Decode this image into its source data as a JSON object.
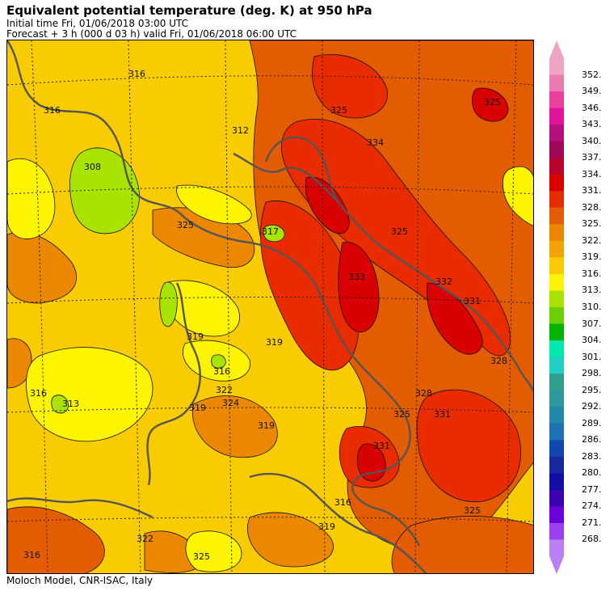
{
  "header": {
    "title": "Equivalent potential temperature (deg. K) at 950 hPa",
    "initial_time": "Initial time  Fri, 01/06/2018  03:00 UTC",
    "forecast": "Forecast  +   3 h  (000 d 03 h)  valid Fri, 01/06/2018 06:00 UTC"
  },
  "footer": {
    "credit": "Moloch Model, CNR-ISAC, Italy"
  },
  "map": {
    "contour_labels": [
      "316",
      "316",
      "308",
      "312",
      "325",
      "325",
      "334",
      "325",
      "325",
      "317",
      "333",
      "332",
      "331",
      "328",
      "319",
      "313",
      "319",
      "316",
      "322",
      "324",
      "319",
      "328",
      "331",
      "325",
      "331",
      "316",
      "325",
      "319",
      "322",
      "325",
      "316",
      "319",
      "316"
    ]
  },
  "colorbar": {
    "labels": [
      "352.",
      "349.",
      "346.",
      "343.",
      "340.",
      "337.",
      "334.",
      "331.",
      "328.",
      "325.",
      "322.",
      "319.",
      "316.",
      "313.",
      "310.",
      "307.",
      "304.",
      "301.",
      "298.",
      "295.",
      "292.",
      "289.",
      "286.",
      "283.",
      "280.",
      "277.",
      "274.",
      "271.",
      "268."
    ],
    "colors": [
      "#f0a4c4",
      "#e87cb0",
      "#e8409c",
      "#e0149c",
      "#b4107c",
      "#a0085c",
      "#b8042c",
      "#d80000",
      "#e82c00",
      "#e45c00",
      "#ec8800",
      "#f2a400",
      "#f8cc00",
      "#fcf400",
      "#a8e400",
      "#6cd000",
      "#00b400",
      "#00e8b0",
      "#20d0c4",
      "#30a08c",
      "#30989c",
      "#2088a8",
      "#2070b4",
      "#1048ac",
      "#1828a0",
      "#1010a8",
      "#3c00b0",
      "#6c00d8",
      "#9a40f0",
      "#b880f4"
    ]
  }
}
